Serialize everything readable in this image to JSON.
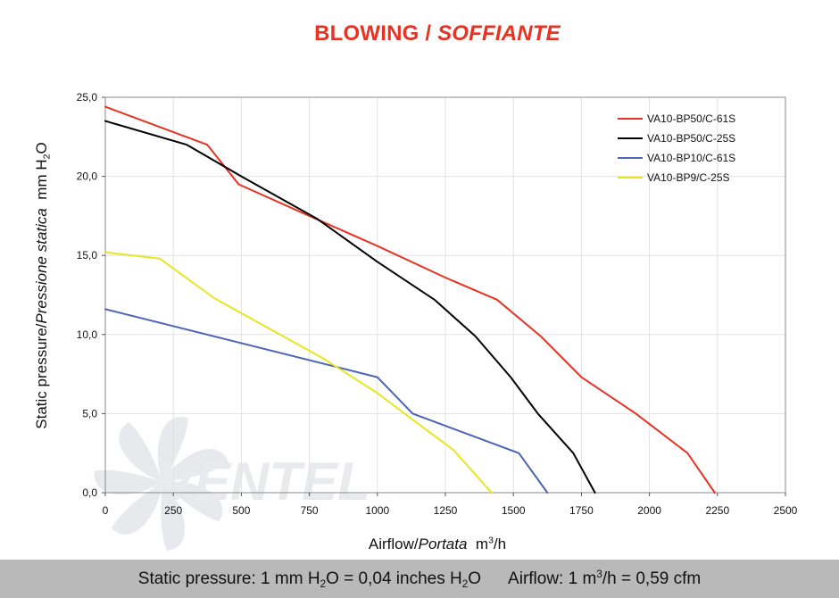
{
  "page": {
    "title_main": "BLOWING /",
    "title_italic": "SOFFIANTE",
    "watermark": "VENTEL",
    "y_axis_label": {
      "main": "Static pressure",
      "sep": "/",
      "italic": "Pressione statica",
      "unit": "mm H",
      "sub": "2",
      "tail": "O"
    },
    "x_axis_label": {
      "main": "Airflow",
      "sep": "/",
      "italic": "Portata",
      "unit": "m",
      "sup": "3",
      "tail": "/h"
    },
    "footer": {
      "pressure_prefix": "Static pressure: 1 mm H",
      "pressure_sub": "2",
      "pressure_mid": "O = 0,04 inches H",
      "pressure_sub2": "2",
      "pressure_tail": "O",
      "airflow_prefix": "Airflow: 1 m",
      "airflow_sup": "3",
      "airflow_tail": "/h = 0,59 cfm"
    }
  },
  "chart_data": {
    "type": "line",
    "title": "BLOWING / SOFFIANTE",
    "xlabel": "Airflow / Portata m³/h",
    "ylabel": "Static pressure / Pressione statica mm H2O",
    "xlim": [
      0,
      2500
    ],
    "ylim": [
      0,
      25
    ],
    "x_ticks": [
      0,
      250,
      500,
      750,
      1000,
      1250,
      1500,
      1750,
      2000,
      2250,
      2500
    ],
    "x_tick_labels": [
      "0",
      "250",
      "500",
      "750",
      "1000",
      "1250",
      "1500",
      "1750",
      "2000",
      "2250",
      "2500"
    ],
    "y_ticks": [
      0,
      5,
      10,
      15,
      20,
      25
    ],
    "y_tick_labels": [
      "0,0",
      "5,0",
      "10,0",
      "15,0",
      "20,0",
      "25,0"
    ],
    "grid": true,
    "legend_position": "top-right",
    "series": [
      {
        "name": "VA10-BP50/C-61S",
        "color": "#e63323",
        "points": [
          [
            0,
            24.4
          ],
          [
            375,
            22.0
          ],
          [
            490,
            19.5
          ],
          [
            750,
            17.5
          ],
          [
            1000,
            15.6
          ],
          [
            1250,
            13.6
          ],
          [
            1440,
            12.2
          ],
          [
            1600,
            9.9
          ],
          [
            1750,
            7.3
          ],
          [
            1950,
            5.0
          ],
          [
            2140,
            2.5
          ],
          [
            2240,
            0.0
          ]
        ]
      },
      {
        "name": "VA10-BP50/C-25S",
        "color": "#000000",
        "points": [
          [
            0,
            23.5
          ],
          [
            300,
            22.0
          ],
          [
            500,
            20.0
          ],
          [
            780,
            17.3
          ],
          [
            1000,
            14.6
          ],
          [
            1210,
            12.2
          ],
          [
            1360,
            9.9
          ],
          [
            1490,
            7.3
          ],
          [
            1590,
            5.0
          ],
          [
            1720,
            2.5
          ],
          [
            1800,
            0.0
          ]
        ]
      },
      {
        "name": "VA10-BP10/C-61S",
        "color": "#4b64b4",
        "points": [
          [
            0,
            11.6
          ],
          [
            1000,
            7.3
          ],
          [
            1130,
            5.0
          ],
          [
            1520,
            2.5
          ],
          [
            1625,
            0.0
          ]
        ]
      },
      {
        "name": "VA10-BP9/C-25S",
        "color": "#e6e623",
        "points": [
          [
            0,
            15.2
          ],
          [
            200,
            14.8
          ],
          [
            400,
            12.3
          ],
          [
            800,
            8.5
          ],
          [
            1000,
            6.3
          ],
          [
            1100,
            5.0
          ],
          [
            1280,
            2.7
          ],
          [
            1420,
            0.0
          ]
        ]
      }
    ]
  }
}
